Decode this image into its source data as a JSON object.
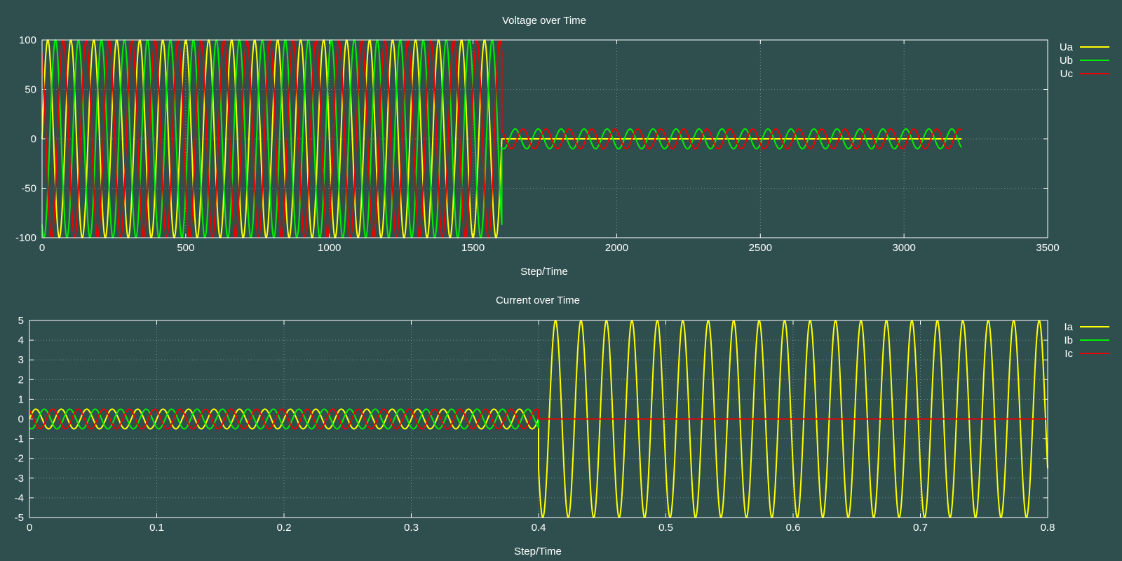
{
  "chart_data": [
    {
      "type": "line",
      "title": "Voltage over Time",
      "xlabel": "Step/Time",
      "ylabel": "",
      "xlim": [
        0,
        3500
      ],
      "ylim": [
        -100,
        100
      ],
      "xticks": [
        "0",
        "500",
        "1000",
        "1500",
        "2000",
        "2500",
        "3000",
        "3500"
      ],
      "yticks": [
        "-100",
        "-50",
        "0",
        "50",
        "100"
      ],
      "grid": true,
      "legend": "top-right",
      "series": [
        {
          "name": "Ua",
          "color": "#ffff00",
          "segments": [
            {
              "x_start": 0,
              "x_end": 1600,
              "amplitude": 100,
              "period": 80,
              "phase_deg": 0
            },
            {
              "x_start": 1600,
              "x_end": 3200,
              "amplitude": 0,
              "period": 80,
              "phase_deg": 0
            }
          ]
        },
        {
          "name": "Ub",
          "color": "#00ee00",
          "segments": [
            {
              "x_start": 0,
              "x_end": 1600,
              "amplitude": 100,
              "period": 80,
              "phase_deg": -120
            },
            {
              "x_start": 1600,
              "x_end": 3200,
              "amplitude": 10,
              "period": 80,
              "phase_deg": -120
            }
          ]
        },
        {
          "name": "Uc",
          "color": "#ee0000",
          "segments": [
            {
              "x_start": 0,
              "x_end": 1600,
              "amplitude": 100,
              "period": 80,
              "phase_deg": 120
            },
            {
              "x_start": 1600,
              "x_end": 3200,
              "amplitude": 10,
              "period": 80,
              "phase_deg": 120
            }
          ]
        }
      ]
    },
    {
      "type": "line",
      "title": "Current over Time",
      "xlabel": "Step/Time",
      "ylabel": "",
      "xlim": [
        0,
        0.8
      ],
      "ylim": [
        -5,
        5
      ],
      "xticks": [
        "0",
        "0.1",
        "0.2",
        "0.3",
        "0.4",
        "0.5",
        "0.6",
        "0.7",
        "0.8"
      ],
      "yticks": [
        "-5",
        "-4",
        "-3",
        "-2",
        "-1",
        "0",
        "1",
        "2",
        "3",
        "4",
        "5"
      ],
      "grid": true,
      "legend": "top-right",
      "series": [
        {
          "name": "Ia",
          "color": "#ffff00",
          "segments": [
            {
              "x_start": 0,
              "x_end": 0.4,
              "amplitude": 0.5,
              "period": 0.02,
              "phase_deg": 0
            },
            {
              "x_start": 0.4,
              "x_end": 0.8,
              "amplitude": 5,
              "period": 0.02,
              "phase_deg": 210
            }
          ]
        },
        {
          "name": "Ib",
          "color": "#00ee00",
          "segments": [
            {
              "x_start": 0,
              "x_end": 0.4,
              "amplitude": 0.5,
              "period": 0.02,
              "phase_deg": -120
            },
            {
              "x_start": 0.4,
              "x_end": 0.8,
              "amplitude": 0,
              "period": 0.02,
              "phase_deg": 0
            }
          ]
        },
        {
          "name": "Ic",
          "color": "#ee0000",
          "segments": [
            {
              "x_start": 0,
              "x_end": 0.4,
              "amplitude": 0.5,
              "period": 0.02,
              "phase_deg": 120
            },
            {
              "x_start": 0.4,
              "x_end": 0.8,
              "amplitude": 0,
              "period": 0.02,
              "phase_deg": 0
            }
          ]
        }
      ]
    }
  ]
}
